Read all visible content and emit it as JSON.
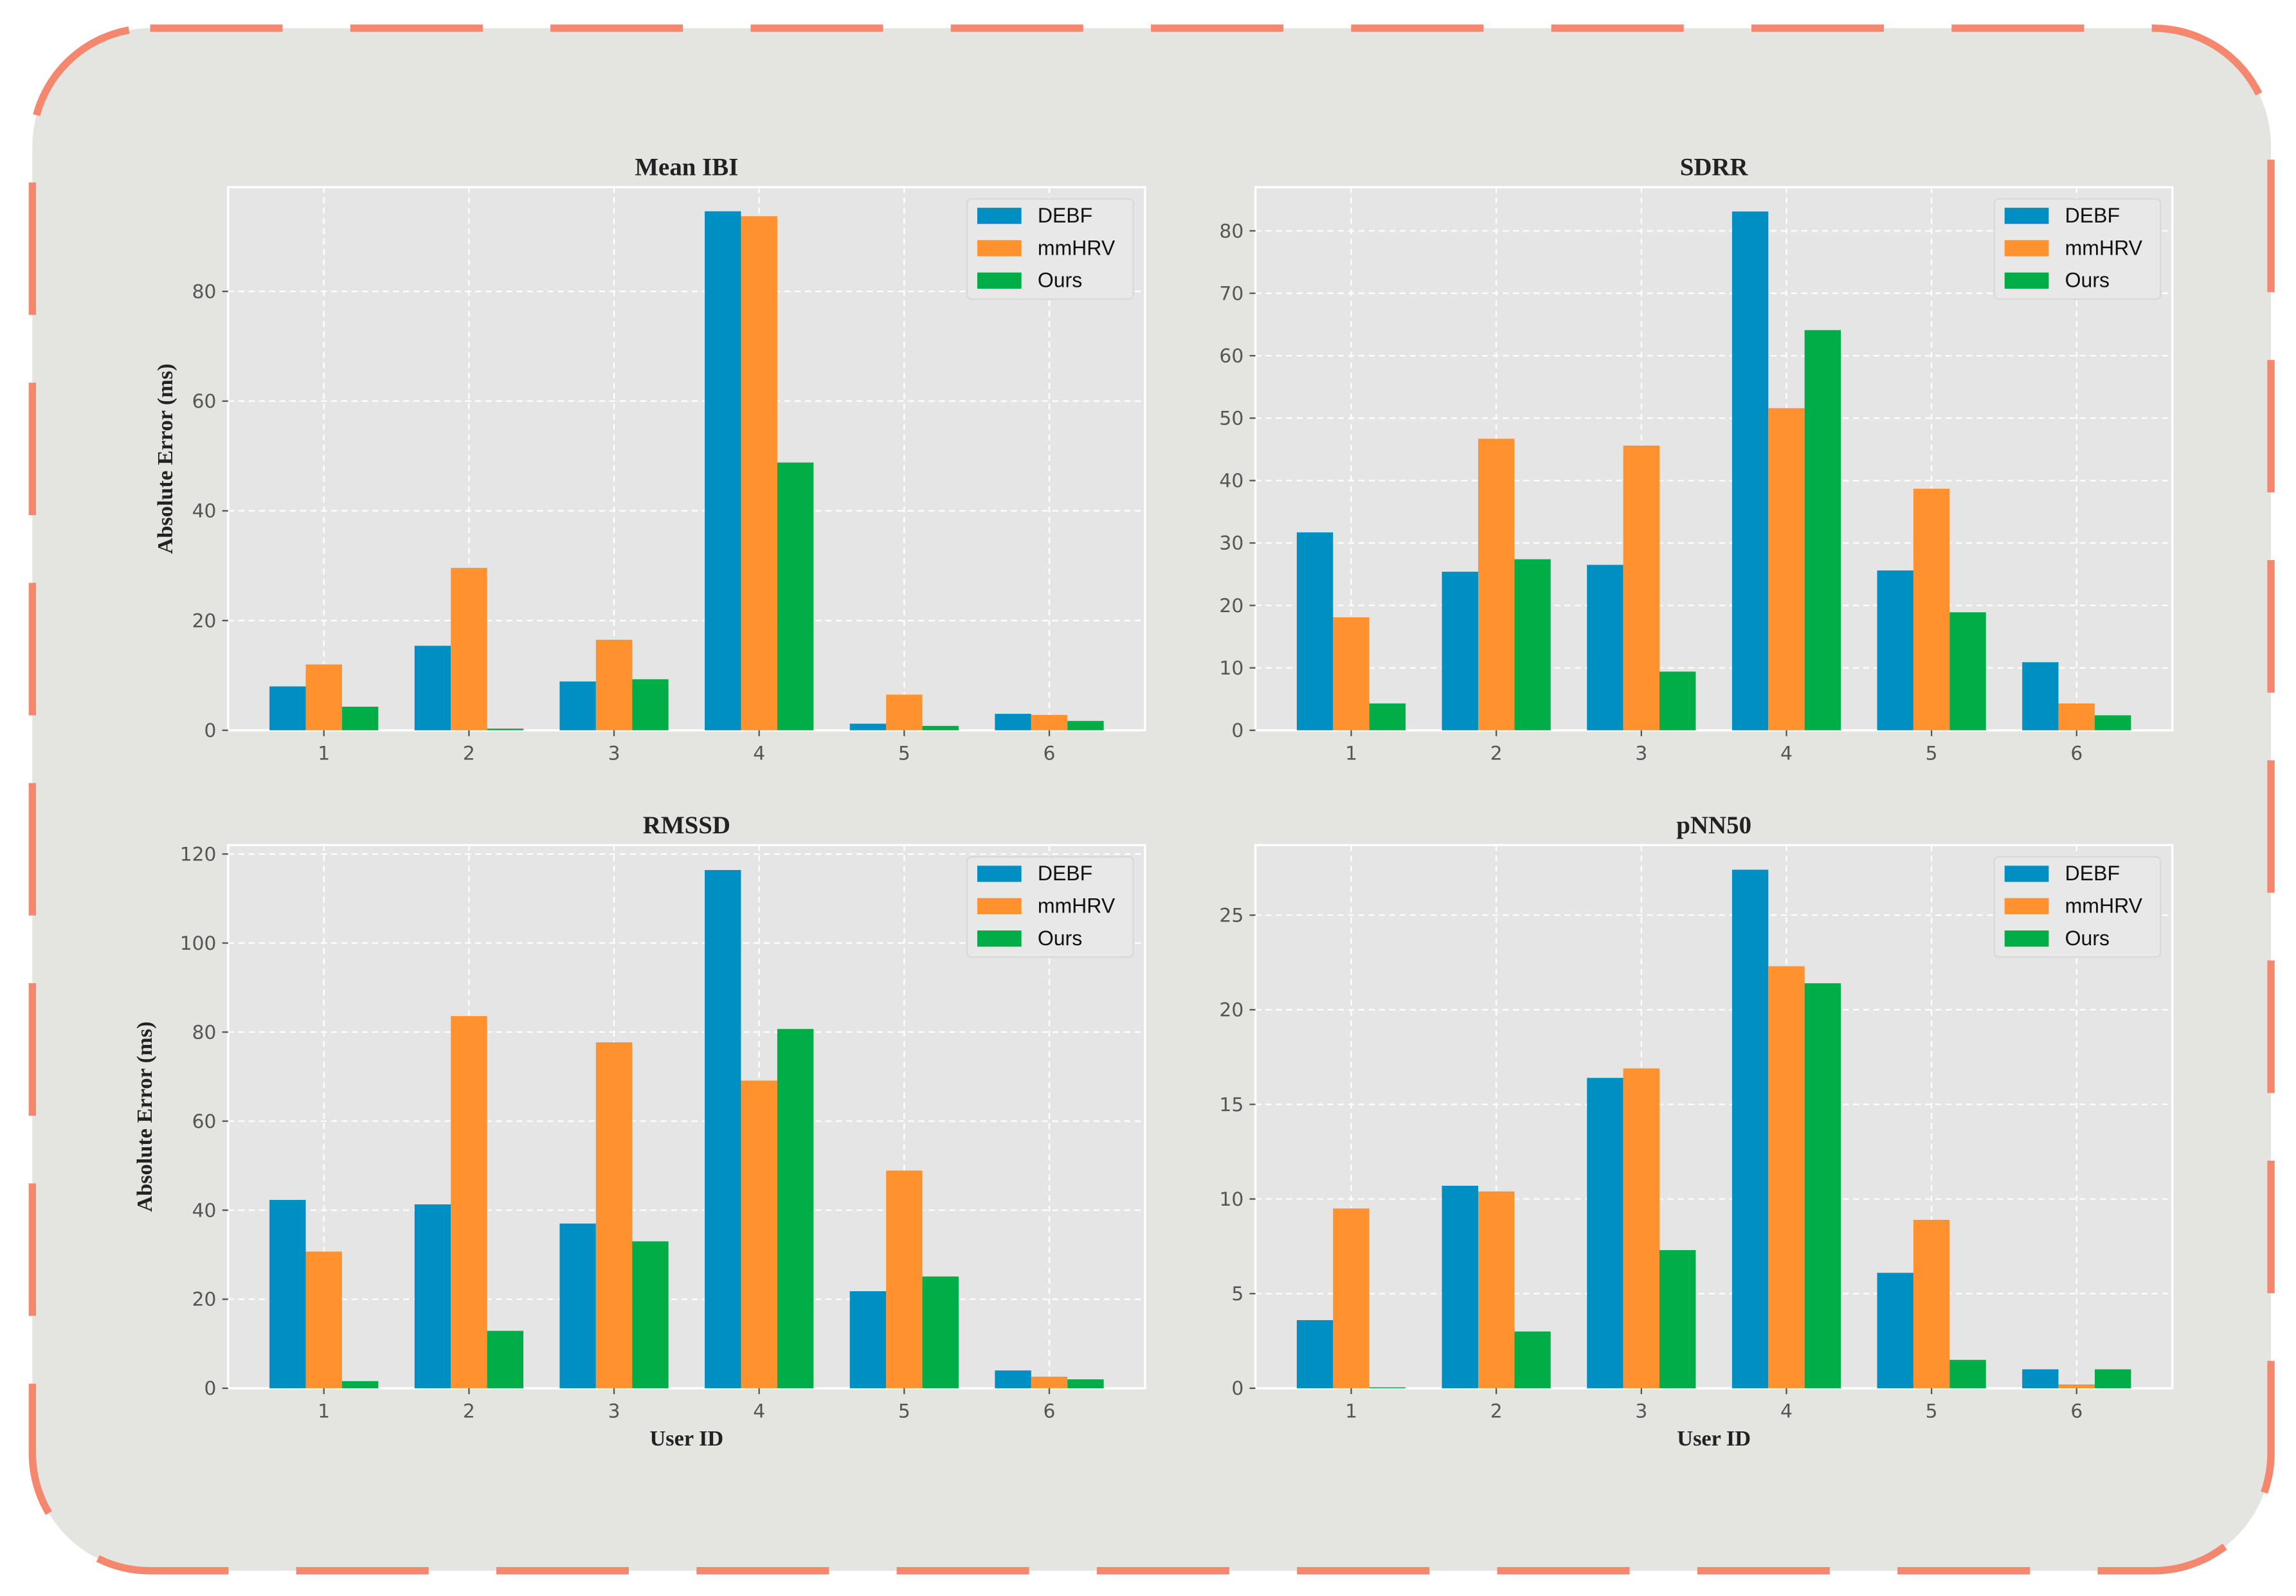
{
  "colors": {
    "DEBF": "#008fc2",
    "mmHRV": "#ff922e",
    "Ours": "#00ad46",
    "frame_border": "#f4876e",
    "frame_bg": "#e4e5e1",
    "plot_bg": "#e5e5e5"
  },
  "chart_data": [
    {
      "type": "bar",
      "title": "Mean IBI",
      "xlabel": "",
      "ylabel": "Absolute Error (ms)",
      "categories": [
        "1",
        "2",
        "3",
        "4",
        "5",
        "6"
      ],
      "ylim": [
        0,
        99
      ],
      "yticks": [
        0,
        20,
        40,
        60,
        80
      ],
      "legend": "top-right",
      "grid": true,
      "series": [
        {
          "name": "DEBF",
          "values": [
            8.0,
            15.4,
            8.9,
            94.6,
            1.2,
            3.0
          ]
        },
        {
          "name": "mmHRV",
          "values": [
            12.0,
            29.6,
            16.5,
            93.7,
            6.5,
            2.8
          ]
        },
        {
          "name": "Ours",
          "values": [
            4.3,
            0.3,
            9.3,
            48.8,
            0.8,
            1.7
          ]
        }
      ]
    },
    {
      "type": "bar",
      "title": "SDRR",
      "xlabel": "",
      "ylabel": "",
      "categories": [
        "1",
        "2",
        "3",
        "4",
        "5",
        "6"
      ],
      "ylim": [
        0,
        87
      ],
      "yticks": [
        0,
        10,
        20,
        30,
        40,
        50,
        60,
        70,
        80
      ],
      "legend": "top-right",
      "grid": true,
      "series": [
        {
          "name": "DEBF",
          "values": [
            31.7,
            25.4,
            26.5,
            83.1,
            25.6,
            10.9
          ]
        },
        {
          "name": "mmHRV",
          "values": [
            18.1,
            46.7,
            45.6,
            51.6,
            38.7,
            4.3
          ]
        },
        {
          "name": "Ours",
          "values": [
            4.3,
            27.4,
            9.4,
            64.1,
            18.9,
            2.4
          ]
        }
      ]
    },
    {
      "type": "bar",
      "title": "RMSSD",
      "xlabel": "User ID",
      "ylabel": "Absolute Error (ms)",
      "categories": [
        "1",
        "2",
        "3",
        "4",
        "5",
        "6"
      ],
      "ylim": [
        0,
        122
      ],
      "yticks": [
        0,
        20,
        40,
        60,
        80,
        100,
        120
      ],
      "legend": "top-right",
      "grid": true,
      "series": [
        {
          "name": "DEBF",
          "values": [
            42.3,
            41.3,
            37.0,
            116.4,
            21.8,
            4.0
          ]
        },
        {
          "name": "mmHRV",
          "values": [
            30.7,
            83.6,
            77.7,
            69.1,
            48.9,
            2.6
          ]
        },
        {
          "name": "Ours",
          "values": [
            1.6,
            12.9,
            33.0,
            80.7,
            25.1,
            2.0
          ]
        }
      ]
    },
    {
      "type": "bar",
      "title": "pNN50",
      "xlabel": "User ID",
      "ylabel": "",
      "categories": [
        "1",
        "2",
        "3",
        "4",
        "5",
        "6"
      ],
      "ylim": [
        0,
        28.7
      ],
      "yticks": [
        0,
        5,
        10,
        15,
        20,
        25
      ],
      "legend": "top-right",
      "grid": true,
      "series": [
        {
          "name": "DEBF",
          "values": [
            3.6,
            10.7,
            16.4,
            27.4,
            6.1,
            1.0
          ]
        },
        {
          "name": "mmHRV",
          "values": [
            9.5,
            10.4,
            16.9,
            22.3,
            8.9,
            0.2
          ]
        },
        {
          "name": "Ours",
          "values": [
            0.05,
            3.0,
            7.3,
            21.4,
            1.5,
            1.0
          ]
        }
      ]
    }
  ]
}
